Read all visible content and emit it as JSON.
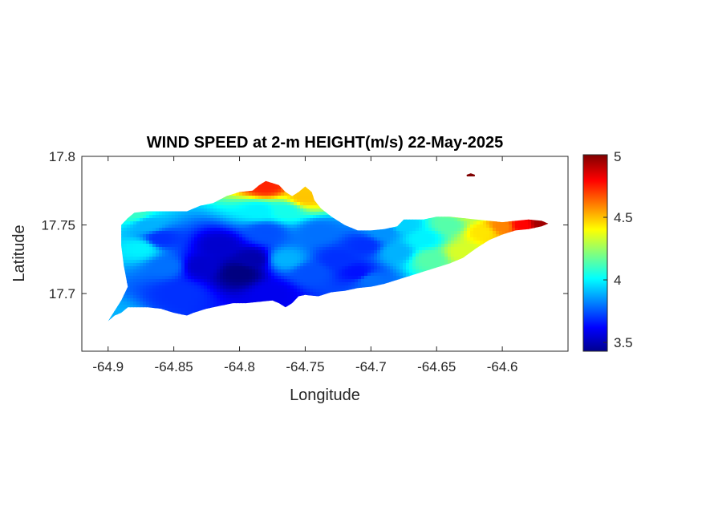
{
  "chart_data": {
    "type": "heatmap",
    "title": "WIND SPEED at 2-m HEIGHT(m/s) 22-May-2025",
    "xlabel": "Longitude",
    "ylabel": "Latitude",
    "xlim": [
      -64.92,
      -64.55
    ],
    "ylim": [
      17.658,
      17.8
    ],
    "xticks": [
      "-64.9",
      "-64.85",
      "-64.8",
      "-64.75",
      "-64.7",
      "-64.65",
      "-64.6"
    ],
    "xtick_values": [
      -64.9,
      -64.85,
      -64.8,
      -64.75,
      -64.7,
      -64.65,
      -64.6
    ],
    "yticks": [
      "17.7",
      "17.75",
      "17.8"
    ],
    "ytick_values": [
      17.7,
      17.75,
      17.8
    ],
    "colormap": "jet",
    "colorbar": {
      "range": [
        3.43,
        5.0
      ],
      "ticks": [
        "3.5",
        "4",
        "4.5",
        "5"
      ],
      "tick_values": [
        3.5,
        4.0,
        4.5,
        5.0
      ],
      "colors": [
        "#00008f",
        "#0000ff",
        "#00ffff",
        "#ffff00",
        "#ff0000",
        "#800000"
      ]
    },
    "grid": false,
    "island_outline": [
      [
        -64.9,
        17.68
      ],
      [
        -64.895,
        17.684
      ],
      [
        -64.89,
        17.686
      ],
      [
        -64.885,
        17.69
      ],
      [
        -64.87,
        17.69
      ],
      [
        -64.86,
        17.689
      ],
      [
        -64.85,
        17.686
      ],
      [
        -64.84,
        17.684
      ],
      [
        -64.835,
        17.686
      ],
      [
        -64.825,
        17.689
      ],
      [
        -64.815,
        17.691
      ],
      [
        -64.805,
        17.693
      ],
      [
        -64.795,
        17.693
      ],
      [
        -64.785,
        17.694
      ],
      [
        -64.775,
        17.695
      ],
      [
        -64.77,
        17.693
      ],
      [
        -64.765,
        17.69
      ],
      [
        -64.76,
        17.693
      ],
      [
        -64.755,
        17.698
      ],
      [
        -64.75,
        17.699
      ],
      [
        -64.74,
        17.698
      ],
      [
        -64.73,
        17.701
      ],
      [
        -64.72,
        17.702
      ],
      [
        -64.71,
        17.704
      ],
      [
        -64.7,
        17.705
      ],
      [
        -64.69,
        17.707
      ],
      [
        -64.68,
        17.71
      ],
      [
        -64.67,
        17.713
      ],
      [
        -64.66,
        17.716
      ],
      [
        -64.65,
        17.719
      ],
      [
        -64.64,
        17.722
      ],
      [
        -64.63,
        17.726
      ],
      [
        -64.62,
        17.733
      ],
      [
        -64.61,
        17.739
      ],
      [
        -64.6,
        17.743
      ],
      [
        -64.59,
        17.746
      ],
      [
        -64.58,
        17.747
      ],
      [
        -64.57,
        17.749
      ],
      [
        -64.565,
        17.751
      ],
      [
        -64.57,
        17.753
      ],
      [
        -64.58,
        17.754
      ],
      [
        -64.59,
        17.753
      ],
      [
        -64.6,
        17.752
      ],
      [
        -64.61,
        17.753
      ],
      [
        -64.62,
        17.754
      ],
      [
        -64.63,
        17.755
      ],
      [
        -64.64,
        17.756
      ],
      [
        -64.65,
        17.756
      ],
      [
        -64.66,
        17.754
      ],
      [
        -64.675,
        17.754
      ],
      [
        -64.68,
        17.749
      ],
      [
        -64.69,
        17.747
      ],
      [
        -64.7,
        17.746
      ],
      [
        -64.71,
        17.746
      ],
      [
        -64.72,
        17.75
      ],
      [
        -64.73,
        17.756
      ],
      [
        -64.738,
        17.762
      ],
      [
        -64.743,
        17.768
      ],
      [
        -64.745,
        17.774
      ],
      [
        -64.75,
        17.778
      ],
      [
        -64.755,
        17.774
      ],
      [
        -64.76,
        17.771
      ],
      [
        -64.765,
        17.774
      ],
      [
        -64.77,
        17.779
      ],
      [
        -64.78,
        17.782
      ],
      [
        -64.785,
        17.779
      ],
      [
        -64.79,
        17.775
      ],
      [
        -64.8,
        17.774
      ],
      [
        -64.81,
        17.771
      ],
      [
        -64.82,
        17.766
      ],
      [
        -64.83,
        17.764
      ],
      [
        -64.84,
        17.76
      ],
      [
        -64.855,
        17.76
      ],
      [
        -64.87,
        17.76
      ],
      [
        -64.88,
        17.759
      ],
      [
        -64.885,
        17.755
      ],
      [
        -64.89,
        17.75
      ],
      [
        -64.89,
        17.735
      ],
      [
        -64.888,
        17.72
      ],
      [
        -64.885,
        17.705
      ],
      [
        -64.89,
        17.695
      ]
    ],
    "islet": [
      [
        -64.627,
        17.786
      ],
      [
        -64.624,
        17.787
      ],
      [
        -64.621,
        17.786
      ]
    ],
    "islet_value": 5.0,
    "field_points": [
      [
        -64.898,
        17.681,
        3.9
      ],
      [
        -64.875,
        17.733,
        4.0
      ],
      [
        -64.86,
        17.74,
        3.7
      ],
      [
        -64.87,
        17.75,
        3.9
      ],
      [
        -64.88,
        17.758,
        4.1
      ],
      [
        -64.855,
        17.72,
        3.8
      ],
      [
        -64.845,
        17.7,
        3.7
      ],
      [
        -64.83,
        17.72,
        3.55
      ],
      [
        -64.815,
        17.735,
        3.55
      ],
      [
        -64.8,
        17.715,
        3.43
      ],
      [
        -64.79,
        17.725,
        3.5
      ],
      [
        -64.78,
        17.745,
        3.75
      ],
      [
        -64.775,
        17.7,
        3.6
      ],
      [
        -64.765,
        17.725,
        3.9
      ],
      [
        -64.765,
        17.76,
        4.05
      ],
      [
        -64.785,
        17.76,
        4.0
      ],
      [
        -64.78,
        17.778,
        4.75
      ],
      [
        -64.75,
        17.77,
        4.5
      ],
      [
        -64.74,
        17.745,
        3.8
      ],
      [
        -64.745,
        17.715,
        3.75
      ],
      [
        -64.725,
        17.725,
        3.7
      ],
      [
        -64.71,
        17.715,
        3.65
      ],
      [
        -64.705,
        17.735,
        3.7
      ],
      [
        -64.7,
        17.71,
        3.8
      ],
      [
        -64.69,
        17.745,
        3.85
      ],
      [
        -64.68,
        17.73,
        3.9
      ],
      [
        -64.66,
        17.74,
        4.0
      ],
      [
        -64.655,
        17.725,
        4.15
      ],
      [
        -64.64,
        17.75,
        4.15
      ],
      [
        -64.63,
        17.73,
        4.35
      ],
      [
        -64.615,
        17.745,
        4.45
      ],
      [
        -64.6,
        17.749,
        4.6
      ],
      [
        -64.585,
        17.75,
        4.8
      ],
      [
        -64.57,
        17.751,
        4.95
      ],
      [
        -64.625,
        17.758,
        4.3
      ],
      [
        -64.675,
        17.75,
        3.95
      ]
    ]
  }
}
